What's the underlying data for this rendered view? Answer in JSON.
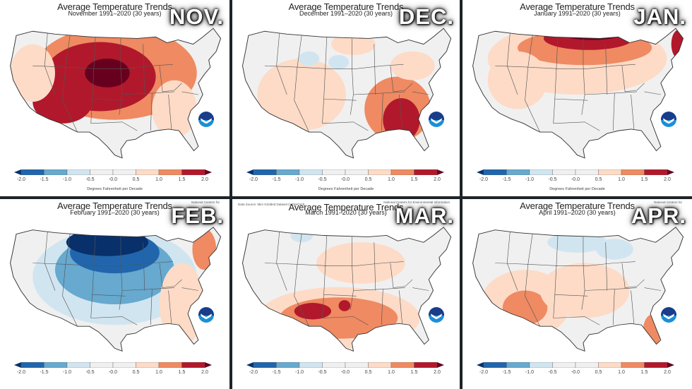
{
  "colorbar": {
    "ticks": [
      "-2.0",
      "-1.5",
      "-1.0",
      "-0.5",
      "-0.0",
      "0.5",
      "1.0",
      "1.5",
      "2.0"
    ],
    "units": "Degrees Fahrenheit per Decade",
    "colors": [
      "#08306b",
      "#2166ac",
      "#67a9cf",
      "#d1e5f0",
      "#f0f0f0",
      "#f0f0f0",
      "#fddbc7",
      "#ef8a62",
      "#b2182b",
      "#67001f"
    ]
  },
  "panels": [
    {
      "id": "nov",
      "title": "Average Temperature Trends",
      "subtitle": "November 1991–2020 (30 years)",
      "month_label": "NOV.",
      "dominant": "warm-west-central",
      "ncei": "",
      "source": ""
    },
    {
      "id": "dec",
      "title": "Average Temperature Trends",
      "subtitle": "December 1991–2020 (30 years)",
      "month_label": "DEC.",
      "dominant": "warm-southeast",
      "ncei": "",
      "source": ""
    },
    {
      "id": "jan",
      "title": "Average Temperature Trends",
      "subtitle": "January 1991–2020 (30 years)",
      "month_label": "JAN.",
      "dominant": "warm-north",
      "ncei": "",
      "source": ""
    },
    {
      "id": "feb",
      "title": "Average Temperature Trends",
      "subtitle": "February 1991–2020 (30 years)",
      "month_label": "FEB.",
      "dominant": "cold-north-central",
      "ncei": "National Centers for",
      "source": ""
    },
    {
      "id": "mar",
      "title": "Average Temperature Trends",
      "subtitle": "March 1991–2020 (30 years)",
      "month_label": "MAR.",
      "dominant": "warm-south",
      "ncei": "National Centers for Environmental Information",
      "source": "Data Source: 5km Gridded Dataset (nClimGrid)"
    },
    {
      "id": "apr",
      "title": "Average Temperature Trends",
      "subtitle": "April 1991–2020 (30 years)",
      "month_label": "APR.",
      "dominant": "warm-southwest",
      "ncei": "National Centers for",
      "source": ""
    }
  ],
  "chart_data": {
    "type": "heatmap",
    "title": "Average Temperature Trends, 1991–2020 (30 years), Nov–Apr",
    "legend": {
      "label": "Degrees Fahrenheit per Decade",
      "bins": [
        -2.0,
        -1.5,
        -1.0,
        -0.5,
        0.0,
        0.5,
        1.0,
        1.5,
        2.0
      ],
      "placement": "bottom"
    },
    "maps": [
      {
        "month": "November",
        "summary": "Widespread warming; strongest (+1.5 to +2.0) over central Plains and Rockies; southwest +1.0 to +1.5; east near 0 to +0.5"
      },
      {
        "month": "December",
        "summary": "Mostly near 0 to +0.5; strongest warming (+1.0 to +2.0) in the Southeast (GA, FL, Carolinas); slight cooling in northern Rockies"
      },
      {
        "month": "January",
        "summary": "Strongest warming (+1.5 to >2.0) along northern tier (ND, MN, MT) and northern Maine; moderate +0.5 to +1.0 across West and Plains; Southeast near 0"
      },
      {
        "month": "February",
        "summary": "Strong cooling (< -2.0) over northern Plains and Upper Midwest; -0.5 to -1.5 across central US; warming +0.5 to +1.5 along East Coast and Florida"
      },
      {
        "month": "March",
        "summary": "Warming concentrated in the South: +1.0 to +1.5 across TX, OK, NM, AZ, Gulf states with pockets >1.5; slight cooling in northern Rockies"
      },
      {
        "month": "April",
        "summary": "Warming +1.0 to +1.5 in Arizona, southern California and Florida; slight cooling in northern Plains and Upper Midwest; elsewhere 0 to +0.5"
      }
    ]
  }
}
